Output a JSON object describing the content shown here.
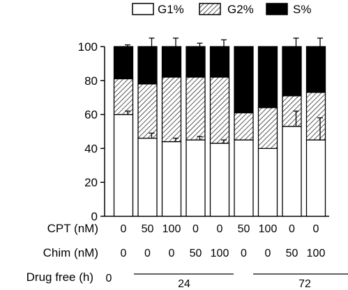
{
  "chart_data": {
    "type": "bar",
    "stacked": true,
    "ylim": [
      0,
      100
    ],
    "yticks": [
      "0",
      "20",
      "40",
      "60",
      "80",
      "100"
    ],
    "legend_position": "top",
    "series": [
      {
        "name": "G1%",
        "fill": "white",
        "values": [
          60,
          46,
          44,
          45,
          43,
          45,
          40,
          53,
          45
        ],
        "errors": [
          2,
          3,
          2,
          2,
          2,
          0,
          0,
          9,
          13
        ]
      },
      {
        "name": "G2%",
        "fill": "hatched",
        "values": [
          21,
          32,
          38,
          37,
          39,
          16,
          24,
          18,
          28
        ]
      },
      {
        "name": "S%",
        "fill": "black",
        "values": [
          19,
          22,
          18,
          18,
          18,
          39,
          36,
          29,
          27
        ],
        "errors": [
          1,
          5,
          5,
          2,
          4,
          0,
          0,
          5,
          5
        ]
      }
    ],
    "row_labels": [
      {
        "label": "CPT (nM)",
        "values": [
          "0",
          "50",
          "100",
          "0",
          "0",
          "50",
          "100",
          "0",
          "0"
        ]
      },
      {
        "label": "Chim (nM)",
        "values": [
          "0",
          "0",
          "0",
          "50",
          "100",
          "0",
          "0",
          "50",
          "100"
        ]
      }
    ],
    "drug_free": {
      "label": "Drug free (h)",
      "first": "0",
      "groups": [
        "24",
        "72"
      ]
    },
    "colors": {
      "bar_outline": "#000000",
      "white_fill": "#ffffff",
      "black_fill": "#000000"
    }
  }
}
